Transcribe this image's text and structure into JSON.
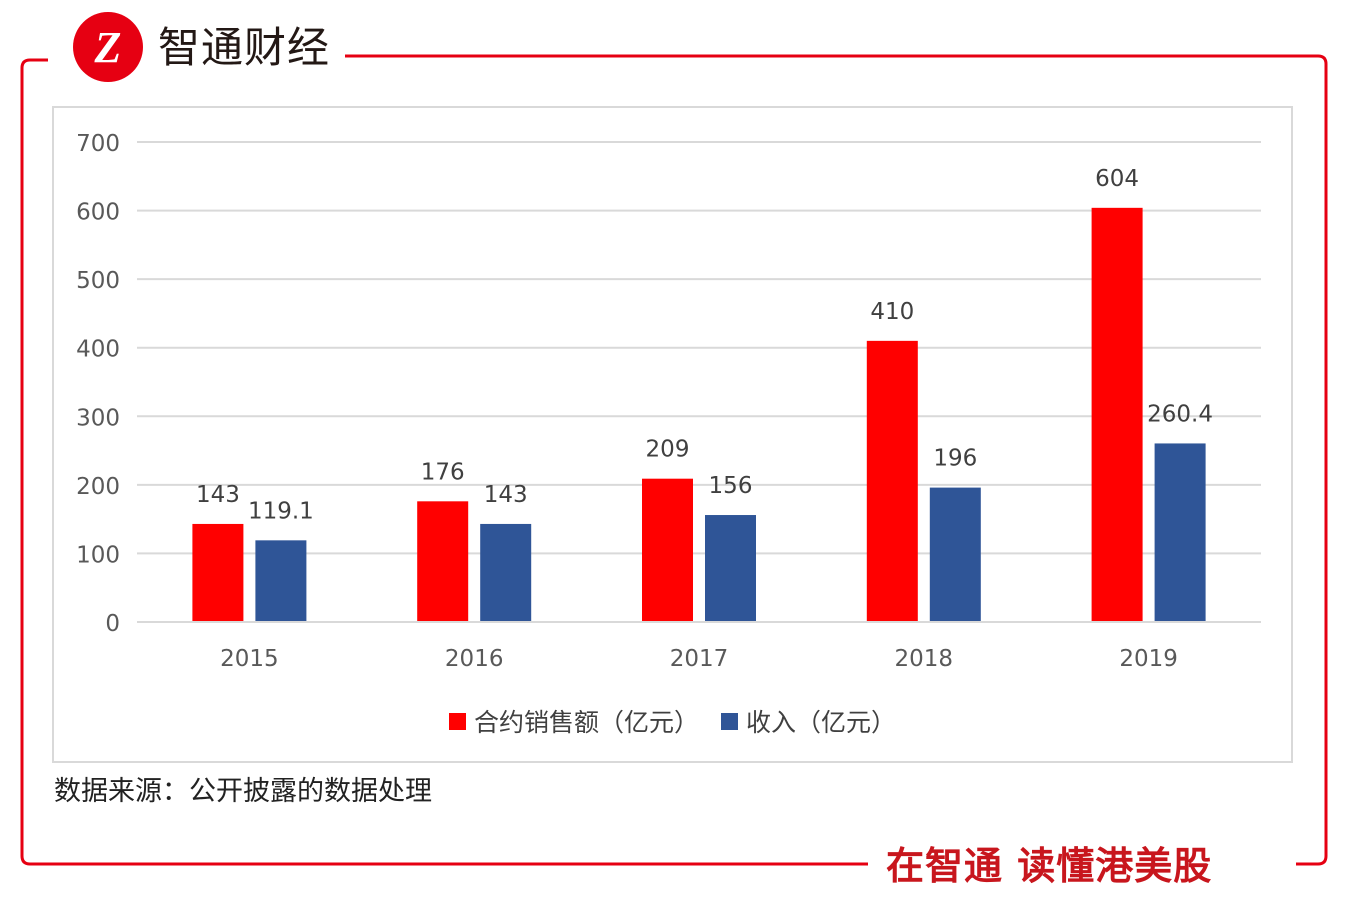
{
  "brand": {
    "logo_text": "Z",
    "name": "智通财经",
    "slogan": "在智通 读懂港美股",
    "accent_color": "#e60012"
  },
  "source_note": "数据来源：公开披露的数据处理",
  "chart_data": {
    "type": "bar",
    "title": "",
    "xlabel": "",
    "ylabel": "",
    "categories": [
      "2015",
      "2016",
      "2017",
      "2018",
      "2019"
    ],
    "series": [
      {
        "name": "合约销售额（亿元）",
        "color": "#ff0000",
        "values": [
          143,
          176,
          209,
          410,
          604
        ],
        "labels": [
          "143",
          "176",
          "209",
          "410",
          "604"
        ]
      },
      {
        "name": "收入（亿元）",
        "color": "#2f5597",
        "values": [
          119.1,
          143,
          156,
          196,
          260.4
        ],
        "labels": [
          "119.1",
          "143",
          "156",
          "196",
          "260.4"
        ]
      }
    ],
    "ylim": [
      0,
      700
    ],
    "yticks": [
      "0",
      "100",
      "200",
      "300",
      "400",
      "500",
      "600",
      "700"
    ],
    "grid": true,
    "legend_position": "bottom"
  }
}
